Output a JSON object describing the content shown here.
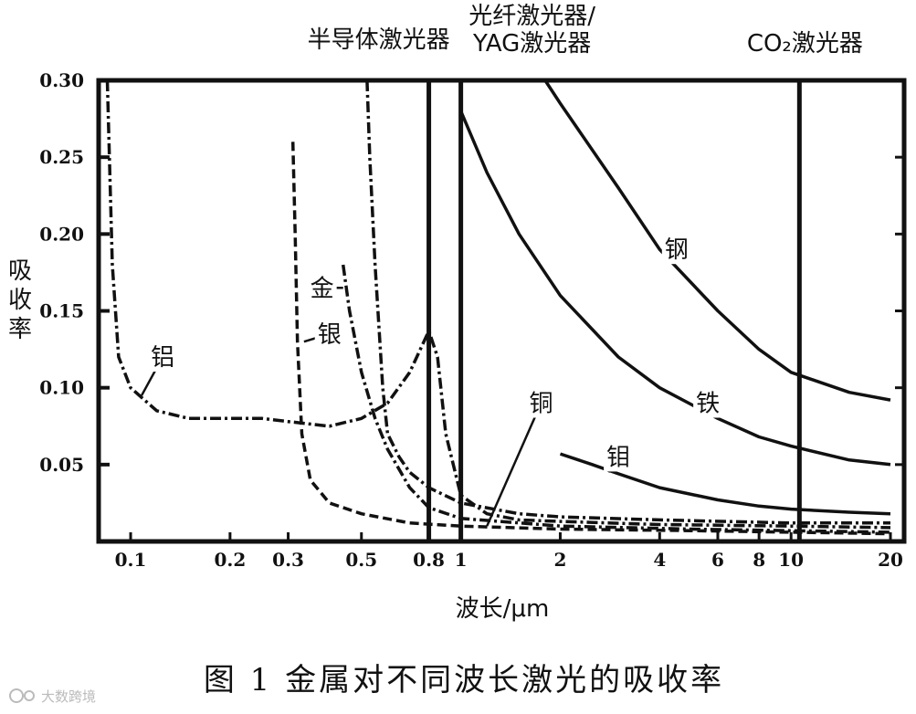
{
  "chart_data": {
    "type": "line",
    "title": "",
    "caption": "图 1  金属对不同波长激光的吸收率",
    "xlabel": "波长/μm",
    "ylabel": [
      "吸",
      "收",
      "率"
    ],
    "x_scale": "log",
    "xlim": [
      0.08,
      22
    ],
    "ylim": [
      0,
      0.3
    ],
    "x_ticks": [
      {
        "value": 0.1,
        "label": "0.1"
      },
      {
        "value": 0.2,
        "label": "0.2"
      },
      {
        "value": 0.3,
        "label": "0.3"
      },
      {
        "value": 0.5,
        "label": "0.5"
      },
      {
        "value": 0.8,
        "label": "0.8"
      },
      {
        "value": 1,
        "label": "1"
      },
      {
        "value": 2,
        "label": "2"
      },
      {
        "value": 4,
        "label": "4"
      },
      {
        "value": 6,
        "label": "6"
      },
      {
        "value": 8,
        "label": "8"
      },
      {
        "value": 10,
        "label": "10"
      },
      {
        "value": 20,
        "label": "20"
      }
    ],
    "y_ticks": [
      {
        "value": 0.05,
        "label": "0.05"
      },
      {
        "value": 0.1,
        "label": "0.10"
      },
      {
        "value": 0.15,
        "label": "0.15"
      },
      {
        "value": 0.2,
        "label": "0.20"
      },
      {
        "value": 0.25,
        "label": "0.25"
      },
      {
        "value": 0.3,
        "label": "0.30"
      }
    ],
    "laser_lines": [
      {
        "x": 0.8,
        "label_lines": [
          "半导体激光器"
        ]
      },
      {
        "x": 1.0,
        "label_lines": [
          "光纤激光器/",
          "YAG激光器"
        ]
      },
      {
        "x": 10.6,
        "label_lines": [
          "CO₂激光器"
        ]
      }
    ],
    "series": [
      {
        "name": "铝",
        "style": "dashdot",
        "points": [
          [
            0.085,
            0.3
          ],
          [
            0.088,
            0.18
          ],
          [
            0.092,
            0.12
          ],
          [
            0.1,
            0.1
          ],
          [
            0.12,
            0.085
          ],
          [
            0.15,
            0.08
          ],
          [
            0.2,
            0.08
          ],
          [
            0.25,
            0.08
          ],
          [
            0.3,
            0.078
          ],
          [
            0.4,
            0.075
          ],
          [
            0.5,
            0.08
          ],
          [
            0.6,
            0.09
          ],
          [
            0.7,
            0.11
          ],
          [
            0.8,
            0.137
          ],
          [
            0.85,
            0.12
          ],
          [
            0.9,
            0.07
          ],
          [
            1.0,
            0.03
          ],
          [
            1.2,
            0.018
          ],
          [
            1.5,
            0.014
          ],
          [
            2,
            0.013
          ],
          [
            4,
            0.011
          ],
          [
            10,
            0.01
          ],
          [
            20,
            0.009
          ]
        ],
        "label_pos": [
          0.125,
          0.12
        ],
        "arrow_to": [
          0.108,
          0.095
        ]
      },
      {
        "name": "银",
        "style": "dashed",
        "points": [
          [
            0.31,
            0.26
          ],
          [
            0.315,
            0.2
          ],
          [
            0.32,
            0.13
          ],
          [
            0.33,
            0.07
          ],
          [
            0.35,
            0.04
          ],
          [
            0.4,
            0.025
          ],
          [
            0.5,
            0.018
          ],
          [
            0.7,
            0.012
          ],
          [
            1,
            0.01
          ],
          [
            2,
            0.008
          ],
          [
            5,
            0.007
          ],
          [
            10,
            0.006
          ],
          [
            20,
            0.005
          ]
        ],
        "label_pos": [
          0.4,
          0.135
        ],
        "arrow_to": [
          0.335,
          0.13
        ]
      },
      {
        "name": "金",
        "style": "dashdot",
        "points": [
          [
            0.44,
            0.18
          ],
          [
            0.46,
            0.15
          ],
          [
            0.5,
            0.11
          ],
          [
            0.55,
            0.08
          ],
          [
            0.6,
            0.06
          ],
          [
            0.7,
            0.035
          ],
          [
            0.8,
            0.022
          ],
          [
            1,
            0.015
          ],
          [
            2,
            0.01
          ],
          [
            5,
            0.008
          ],
          [
            10,
            0.007
          ],
          [
            20,
            0.006
          ]
        ],
        "label_pos": [
          0.38,
          0.165
        ],
        "arrow_to": [
          0.44,
          0.165
        ]
      },
      {
        "name": "铜",
        "style": "dashdot",
        "points": [
          [
            0.52,
            0.3
          ],
          [
            0.53,
            0.25
          ],
          [
            0.55,
            0.18
          ],
          [
            0.58,
            0.1
          ],
          [
            0.6,
            0.07
          ],
          [
            0.65,
            0.055
          ],
          [
            0.7,
            0.045
          ],
          [
            0.8,
            0.035
          ],
          [
            1,
            0.025
          ],
          [
            1.5,
            0.018
          ],
          [
            2,
            0.016
          ],
          [
            4,
            0.014
          ],
          [
            10,
            0.012
          ],
          [
            20,
            0.012
          ]
        ],
        "label_pos": [
          1.75,
          0.09
        ],
        "arrow_to": [
          1.2,
          0.01
        ]
      },
      {
        "name": "钼",
        "style": "solid",
        "points": [
          [
            2,
            0.057
          ],
          [
            2.5,
            0.05
          ],
          [
            3,
            0.044
          ],
          [
            4,
            0.035
          ],
          [
            6,
            0.027
          ],
          [
            8,
            0.023
          ],
          [
            10,
            0.021
          ],
          [
            15,
            0.019
          ],
          [
            20,
            0.018
          ]
        ],
        "label_pos": [
          3.0,
          0.055
        ],
        "arrow_to": [
          2.8,
          0.045
        ]
      },
      {
        "name": "铁",
        "style": "solid",
        "points": [
          [
            1,
            0.28
          ],
          [
            1.2,
            0.24
          ],
          [
            1.5,
            0.2
          ],
          [
            2,
            0.16
          ],
          [
            3,
            0.12
          ],
          [
            4,
            0.1
          ],
          [
            6,
            0.08
          ],
          [
            8,
            0.068
          ],
          [
            10,
            0.062
          ],
          [
            15,
            0.053
          ],
          [
            20,
            0.05
          ]
        ],
        "label_pos": [
          5.6,
          0.09
        ],
        "arrow_to": null
      },
      {
        "name": "钢",
        "style": "solid",
        "points": [
          [
            1.8,
            0.3
          ],
          [
            2,
            0.285
          ],
          [
            3,
            0.23
          ],
          [
            4,
            0.19
          ],
          [
            6,
            0.15
          ],
          [
            8,
            0.125
          ],
          [
            10,
            0.11
          ],
          [
            15,
            0.097
          ],
          [
            20,
            0.092
          ]
        ],
        "label_pos": [
          4.5,
          0.19
        ],
        "arrow_to": null
      }
    ]
  },
  "watermark": "大数跨境"
}
